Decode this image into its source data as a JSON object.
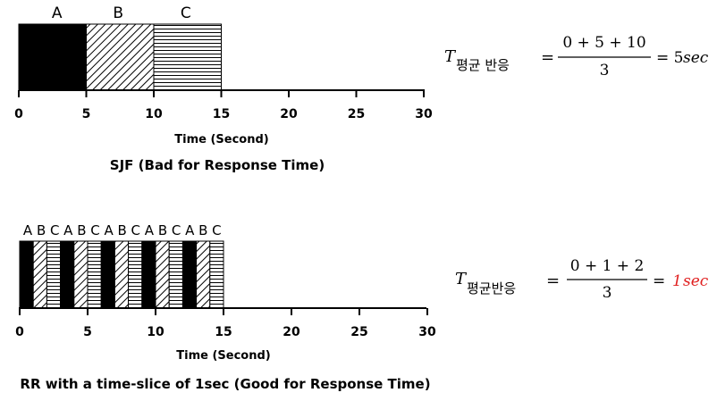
{
  "sjf": {
    "task_labels": [
      "A",
      "B",
      "C"
    ],
    "segments": [
      {
        "task": "A",
        "start": 0,
        "end": 5
      },
      {
        "task": "B",
        "start": 5,
        "end": 10
      },
      {
        "task": "C",
        "start": 10,
        "end": 15
      }
    ],
    "axis_ticks": [
      "0",
      "5",
      "10",
      "15",
      "20",
      "25",
      "30"
    ],
    "axis_label": "Time (Second)",
    "caption": "SJF (Bad for Response Time)",
    "formula": {
      "symbol": "T",
      "subscript": "평균 반응",
      "equals": "=",
      "numerator": "0 + 5 + 10",
      "denominator": "3",
      "result": "= 5",
      "result_unit": "sec"
    }
  },
  "rr": {
    "top_labels": [
      "A",
      "B",
      "C",
      "A",
      "B",
      "C",
      "A",
      "B",
      "C",
      "A",
      "B",
      "C",
      "A",
      "B",
      "C"
    ],
    "segments": [
      {
        "task": "A",
        "start": 0,
        "end": 1
      },
      {
        "task": "B",
        "start": 1,
        "end": 2
      },
      {
        "task": "C",
        "start": 2,
        "end": 3
      },
      {
        "task": "A",
        "start": 3,
        "end": 4
      },
      {
        "task": "B",
        "start": 4,
        "end": 5
      },
      {
        "task": "C",
        "start": 5,
        "end": 6
      },
      {
        "task": "A",
        "start": 6,
        "end": 7
      },
      {
        "task": "B",
        "start": 7,
        "end": 8
      },
      {
        "task": "C",
        "start": 8,
        "end": 9
      },
      {
        "task": "A",
        "start": 9,
        "end": 10
      },
      {
        "task": "B",
        "start": 10,
        "end": 11
      },
      {
        "task": "C",
        "start": 11,
        "end": 12
      },
      {
        "task": "A",
        "start": 12,
        "end": 13
      },
      {
        "task": "B",
        "start": 13,
        "end": 14
      },
      {
        "task": "C",
        "start": 14,
        "end": 15
      }
    ],
    "axis_ticks": [
      "0",
      "5",
      "10",
      "15",
      "20",
      "25",
      "30"
    ],
    "axis_label": "Time (Second)",
    "caption": "RR with a time-slice of 1sec (Good for Response Time)",
    "formula": {
      "symbol": "T",
      "subscript": "평균반응",
      "equals": "=",
      "numerator": "0 + 1 + 2",
      "denominator": "3",
      "result_prefix": "= ",
      "result": "1",
      "result_unit": "sec",
      "result_color": "#e02020"
    }
  },
  "colors": {
    "fill_A": "#000000",
    "stroke": "#000000"
  },
  "patterns": {
    "A": "solid-black",
    "B": "diagonal-hatch",
    "C": "horizontal-lines"
  }
}
